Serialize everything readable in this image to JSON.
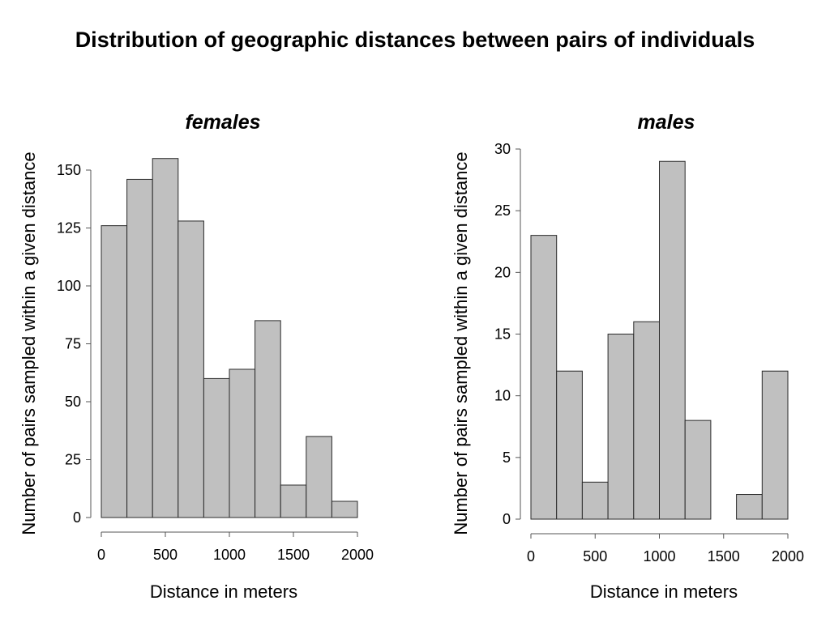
{
  "title": "Distribution of geographic distances between pairs of individuals",
  "chart_data": [
    {
      "type": "bar",
      "title": "females",
      "xlabel": "Distance in meters",
      "ylabel": "Number of pairs sampled within a given distance",
      "bin_edges": [
        0,
        200,
        400,
        600,
        800,
        1000,
        1200,
        1400,
        1600,
        1800,
        2000
      ],
      "values": [
        126,
        146,
        155,
        128,
        60,
        64,
        85,
        14,
        35,
        7
      ],
      "xlim": [
        0,
        2000
      ],
      "ylim": [
        0,
        150
      ],
      "xticks": [
        0,
        500,
        1000,
        1500,
        2000
      ],
      "yticks": [
        0,
        25,
        50,
        75,
        100,
        125,
        150
      ],
      "color": "#c0c0c0"
    },
    {
      "type": "bar",
      "title": "males",
      "xlabel": "Distance in meters",
      "ylabel": "Number of pairs sampled within a given distance",
      "bin_edges": [
        0,
        200,
        400,
        600,
        800,
        1000,
        1200,
        1400,
        1600,
        1800,
        2000
      ],
      "values": [
        23,
        12,
        3,
        15,
        16,
        29,
        8,
        0,
        2,
        12
      ],
      "xlim": [
        0,
        2000
      ],
      "ylim": [
        0,
        30
      ],
      "xticks": [
        0,
        500,
        1000,
        1500,
        2000
      ],
      "yticks": [
        0,
        5,
        10,
        15,
        20,
        25,
        30
      ],
      "color": "#c0c0c0"
    }
  ]
}
